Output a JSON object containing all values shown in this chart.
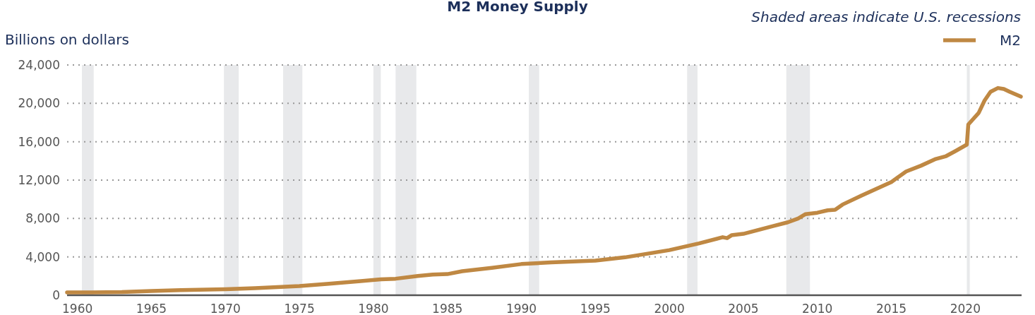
{
  "chart_data": {
    "type": "line",
    "title": "M2 Money Supply",
    "subtitle": "Shaded areas indicate U.S. recessions",
    "ylabel": "Billions on dollars",
    "x": [
      1959.3,
      1961,
      1963,
      1965,
      1967,
      1970,
      1972,
      1975,
      1977,
      1979,
      1980.5,
      1981.5,
      1983,
      1984,
      1985,
      1986,
      1988,
      1990,
      1992,
      1995,
      1997,
      2000,
      2002,
      2003.6,
      2003.9,
      2004.2,
      2005,
      2006,
      2007,
      2008,
      2008.7,
      2009.2,
      2010,
      2010.7,
      2011.2,
      2011.7,
      2013,
      2015,
      2016,
      2017,
      2018,
      2018.7,
      2019.3,
      2020.1,
      2020.2,
      2020.9,
      2021.3,
      2021.7,
      2022.2,
      2022.6,
      2023,
      2023.75
    ],
    "series": [
      {
        "name": "M2",
        "color": "#bf8843",
        "values": [
          300,
          290,
          330,
          450,
          540,
          620,
          730,
          950,
          1200,
          1450,
          1650,
          1720,
          2000,
          2150,
          2200,
          2500,
          2850,
          3250,
          3420,
          3600,
          3950,
          4700,
          5400,
          6050,
          5950,
          6250,
          6400,
          6800,
          7200,
          7600,
          8000,
          8450,
          8600,
          8850,
          8900,
          9450,
          10400,
          11800,
          12900,
          13500,
          14200,
          14500,
          15000,
          15700,
          17800,
          19000,
          20300,
          21200,
          21600,
          21500,
          21200,
          20700
        ]
      }
    ],
    "xlim": [
      1959.3,
      2023.8
    ],
    "ylim": [
      0,
      24000
    ],
    "xticks": [
      1960,
      1965,
      1970,
      1975,
      1980,
      1985,
      1990,
      1995,
      2000,
      2005,
      2010,
      2015,
      2020
    ],
    "yticks": [
      {
        "value": 0,
        "label": "0"
      },
      {
        "value": 4000,
        "label": "4,000"
      },
      {
        "value": 8000,
        "label": "8,000"
      },
      {
        "value": 12000,
        "label": "12,000"
      },
      {
        "value": 16000,
        "label": "16,000"
      },
      {
        "value": 20000,
        "label": "20,000"
      },
      {
        "value": 24000,
        "label": "24,000"
      }
    ],
    "bands": [
      {
        "axis": "x",
        "from": 1960.3,
        "to": 1961.1,
        "color": "#e8e9eb"
      },
      {
        "axis": "x",
        "from": 1969.9,
        "to": 1970.9,
        "color": "#e8e9eb"
      },
      {
        "axis": "x",
        "from": 1973.9,
        "to": 1975.2,
        "color": "#e8e9eb"
      },
      {
        "axis": "x",
        "from": 1980.0,
        "to": 1980.5,
        "color": "#e8e9eb"
      },
      {
        "axis": "x",
        "from": 1981.5,
        "to": 1982.9,
        "color": "#e8e9eb"
      },
      {
        "axis": "x",
        "from": 1990.5,
        "to": 1991.2,
        "color": "#e8e9eb"
      },
      {
        "axis": "x",
        "from": 2001.2,
        "to": 2001.9,
        "color": "#e8e9eb"
      },
      {
        "axis": "x",
        "from": 2007.9,
        "to": 2009.5,
        "color": "#e8e9eb"
      },
      {
        "axis": "x",
        "from": 2020.1,
        "to": 2020.3,
        "color": "#e8e9eb"
      }
    ],
    "grid": "y",
    "legend": "top right",
    "line_style": "solid",
    "marker": "none"
  }
}
